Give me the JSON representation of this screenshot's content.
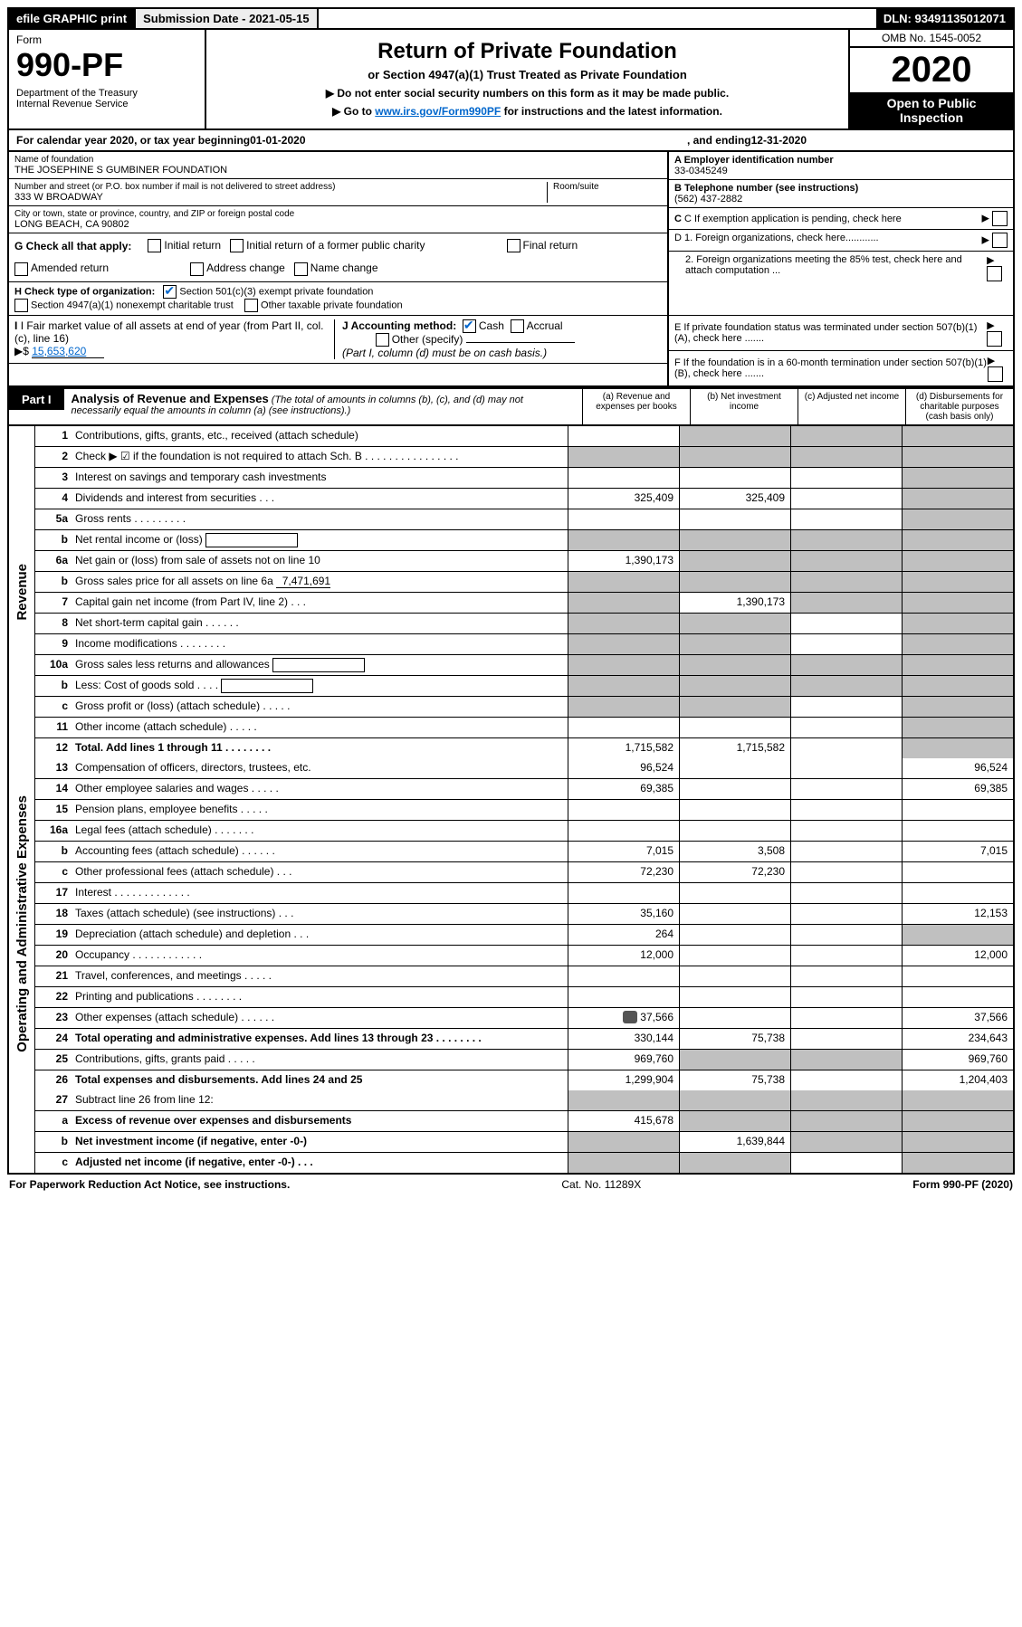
{
  "topbar": {
    "efile": "efile GRAPHIC print",
    "submission_label": "Submission Date - 2021-05-15",
    "dln_label": "DLN: 93491135012071"
  },
  "header": {
    "form_word": "Form",
    "form_no": "990-PF",
    "dept1": "Department of the Treasury",
    "dept2": "Internal Revenue Service",
    "title": "Return of Private Foundation",
    "subtitle": "or Section 4947(a)(1) Trust Treated as Private Foundation",
    "note1": "▶ Do not enter social security numbers on this form as it may be made public.",
    "note2_pre": "▶ Go to ",
    "note2_link": "www.irs.gov/Form990PF",
    "note2_post": " for instructions and the latest information.",
    "omb": "OMB No. 1545-0052",
    "year": "2020",
    "open": "Open to Public Inspection"
  },
  "calyear": {
    "text_pre": "For calendar year 2020, or tax year beginning ",
    "begin": "01-01-2020",
    "mid": " , and ending ",
    "end": "12-31-2020"
  },
  "info": {
    "name_label": "Name of foundation",
    "name": "THE JOSEPHINE S GUMBINER FOUNDATION",
    "addr_label": "Number and street (or P.O. box number if mail is not delivered to street address)",
    "room_label": "Room/suite",
    "addr": "333 W BROADWAY",
    "city_label": "City or town, state or province, country, and ZIP or foreign postal code",
    "city": "LONG BEACH, CA  90802",
    "a_label": "A Employer identification number",
    "a_val": "33-0345249",
    "b_label": "B Telephone number (see instructions)",
    "b_val": "(562) 437-2882",
    "c_label": "C If exemption application is pending, check here",
    "d1": "D 1. Foreign organizations, check here............",
    "d2": "2. Foreign organizations meeting the 85% test, check here and attach computation ...",
    "e": "E  If private foundation status was terminated under section 507(b)(1)(A), check here .......",
    "f": "F  If the foundation is in a 60-month termination under section 507(b)(1)(B), check here .......",
    "g_label": "G Check all that apply:",
    "g_opts": [
      "Initial return",
      "Initial return of a former public charity",
      "Final return",
      "Amended return",
      "Address change",
      "Name change"
    ],
    "h_label": "H Check type of organization:",
    "h_opt1": "Section 501(c)(3) exempt private foundation",
    "h_opt2": "Section 4947(a)(1) nonexempt charitable trust",
    "h_opt3": "Other taxable private foundation",
    "i_label": "I Fair market value of all assets at end of year (from Part II, col. (c), line 16)",
    "i_val": "15,653,620",
    "j_label": "J Accounting method:",
    "j_opts": [
      "Cash",
      "Accrual",
      "Other (specify)"
    ],
    "j_note": "(Part I, column (d) must be on cash basis.)"
  },
  "part1": {
    "label": "Part I",
    "title": "Analysis of Revenue and Expenses",
    "note": "(The total of amounts in columns (b), (c), and (d) may not necessarily equal the amounts in column (a) (see instructions).)",
    "col_a": "(a)  Revenue and expenses per books",
    "col_b": "(b)  Net investment income",
    "col_c": "(c)  Adjusted net income",
    "col_d": "(d)  Disbursements for charitable purposes (cash basis only)"
  },
  "side_labels": {
    "rev": "Revenue",
    "ops": "Operating and Administrative Expenses"
  },
  "rows": [
    {
      "n": "1",
      "d": "Contributions, gifts, grants, etc., received (attach schedule)",
      "a": "",
      "b_g": true,
      "c_g": true,
      "d_g": true
    },
    {
      "n": "2",
      "d": "Check ▶ ☑ if the foundation is not required to attach Sch. B  . . . . . . . . . . . . . . . .",
      "a_g": true,
      "b_g": true,
      "c_g": true,
      "d_g": true,
      "has_check": true
    },
    {
      "n": "3",
      "d": "Interest on savings and temporary cash investments",
      "a": "",
      "b": "",
      "c": "",
      "d_g": true
    },
    {
      "n": "4",
      "d": "Dividends and interest from securities  .  .  .",
      "a": "325,409",
      "b": "325,409",
      "c": "",
      "d_g": true
    },
    {
      "n": "5a",
      "d": "Gross rents  .  .  .  .  .  .  .  .  .",
      "a": "",
      "b": "",
      "c": "",
      "d_g": true
    },
    {
      "n": "b",
      "d": "Net rental income or (loss)  ",
      "a_g": true,
      "b_g": true,
      "c_g": true,
      "d_g": true,
      "inline_box": true
    },
    {
      "n": "6a",
      "d": "Net gain or (loss) from sale of assets not on line 10",
      "a": "1,390,173",
      "b_g": true,
      "c_g": true,
      "d_g": true
    },
    {
      "n": "b",
      "d": "Gross sales price for all assets on line 6a",
      "a_g": true,
      "b_g": true,
      "c_g": true,
      "d_g": true,
      "inline_val": "7,471,691"
    },
    {
      "n": "7",
      "d": "Capital gain net income (from Part IV, line 2)  .  .  .",
      "a_g": true,
      "b": "1,390,173",
      "c_g": true,
      "d_g": true
    },
    {
      "n": "8",
      "d": "Net short-term capital gain  .  .  .  .  .  .",
      "a_g": true,
      "b_g": true,
      "c": "",
      "d_g": true
    },
    {
      "n": "9",
      "d": "Income modifications  .  .  .  .  .  .  .  .",
      "a_g": true,
      "b_g": true,
      "c": "",
      "d_g": true
    },
    {
      "n": "10a",
      "d": "Gross sales less returns and allowances",
      "a_g": true,
      "b_g": true,
      "c_g": true,
      "d_g": true,
      "inline_box": true
    },
    {
      "n": "b",
      "d": "Less: Cost of goods sold  .  .  .  .",
      "a_g": true,
      "b_g": true,
      "c_g": true,
      "d_g": true,
      "inline_box": true
    },
    {
      "n": "c",
      "d": "Gross profit or (loss) (attach schedule)  .  .  .  .  .",
      "a_g": true,
      "b_g": true,
      "c": "",
      "d_g": true
    },
    {
      "n": "11",
      "d": "Other income (attach schedule)  .  .  .  .  .",
      "a": "",
      "b": "",
      "c": "",
      "d_g": true
    },
    {
      "n": "12",
      "d": "Total. Add lines 1 through 11  .  .  .  .  .  .  .  .",
      "a": "1,715,582",
      "b": "1,715,582",
      "c": "",
      "d_g": true,
      "bold": true
    }
  ],
  "rows2": [
    {
      "n": "13",
      "d": "Compensation of officers, directors, trustees, etc.",
      "a": "96,524",
      "b": "",
      "c": "",
      "dd": "96,524"
    },
    {
      "n": "14",
      "d": "Other employee salaries and wages  .  .  .  .  .",
      "a": "69,385",
      "b": "",
      "c": "",
      "dd": "69,385"
    },
    {
      "n": "15",
      "d": "Pension plans, employee benefits  .  .  .  .  .",
      "a": "",
      "b": "",
      "c": "",
      "dd": ""
    },
    {
      "n": "16a",
      "d": "Legal fees (attach schedule)  .  .  .  .  .  .  .",
      "a": "",
      "b": "",
      "c": "",
      "dd": ""
    },
    {
      "n": "b",
      "d": "Accounting fees (attach schedule)  .  .  .  .  .  .",
      "a": "7,015",
      "b": "3,508",
      "c": "",
      "dd": "7,015"
    },
    {
      "n": "c",
      "d": "Other professional fees (attach schedule)  .  .  .",
      "a": "72,230",
      "b": "72,230",
      "c": "",
      "dd": ""
    },
    {
      "n": "17",
      "d": "Interest  .  .  .  .  .  .  .  .  .  .  .  .  .",
      "a": "",
      "b": "",
      "c": "",
      "dd": ""
    },
    {
      "n": "18",
      "d": "Taxes (attach schedule) (see instructions)  .  .  .",
      "a": "35,160",
      "b": "",
      "c": "",
      "dd": "12,153"
    },
    {
      "n": "19",
      "d": "Depreciation (attach schedule) and depletion  .  .  .",
      "a": "264",
      "b": "",
      "c": "",
      "d_g": true
    },
    {
      "n": "20",
      "d": "Occupancy  .  .  .  .  .  .  .  .  .  .  .  .",
      "a": "12,000",
      "b": "",
      "c": "",
      "dd": "12,000"
    },
    {
      "n": "21",
      "d": "Travel, conferences, and meetings  .  .  .  .  .",
      "a": "",
      "b": "",
      "c": "",
      "dd": ""
    },
    {
      "n": "22",
      "d": "Printing and publications  .  .  .  .  .  .  .  .",
      "a": "",
      "b": "",
      "c": "",
      "dd": ""
    },
    {
      "n": "23",
      "d": "Other expenses (attach schedule)  .  .  .  .  .  .",
      "a": "37,566",
      "b": "",
      "c": "",
      "dd": "37,566",
      "icon": true
    },
    {
      "n": "24",
      "d": "Total operating and administrative expenses. Add lines 13 through 23  .  .  .  .  .  .  .  .",
      "a": "330,144",
      "b": "75,738",
      "c": "",
      "dd": "234,643",
      "bold": true
    },
    {
      "n": "25",
      "d": "Contributions, gifts, grants paid  .  .  .  .  .",
      "a": "969,760",
      "b_g": true,
      "c_g": true,
      "dd": "969,760"
    },
    {
      "n": "26",
      "d": "Total expenses and disbursements. Add lines 24 and 25",
      "a": "1,299,904",
      "b": "75,738",
      "c": "",
      "dd": "1,204,403",
      "bold": true
    }
  ],
  "rows3": [
    {
      "n": "27",
      "d": "Subtract line 26 from line 12:",
      "a_g": true,
      "b_g": true,
      "c_g": true,
      "d_g": true
    },
    {
      "n": "a",
      "d": "Excess of revenue over expenses and disbursements",
      "a": "415,678",
      "b_g": true,
      "c_g": true,
      "d_g": true,
      "bold": true
    },
    {
      "n": "b",
      "d": "Net investment income (if negative, enter -0-)",
      "a_g": true,
      "b": "1,639,844",
      "c_g": true,
      "d_g": true,
      "bold": true
    },
    {
      "n": "c",
      "d": "Adjusted net income (if negative, enter -0-)  .  .  .",
      "a_g": true,
      "b_g": true,
      "c": "",
      "d_g": true,
      "bold": true
    }
  ],
  "footer": {
    "left": "For Paperwork Reduction Act Notice, see instructions.",
    "mid": "Cat. No. 11289X",
    "right": "Form 990-PF (2020)"
  }
}
